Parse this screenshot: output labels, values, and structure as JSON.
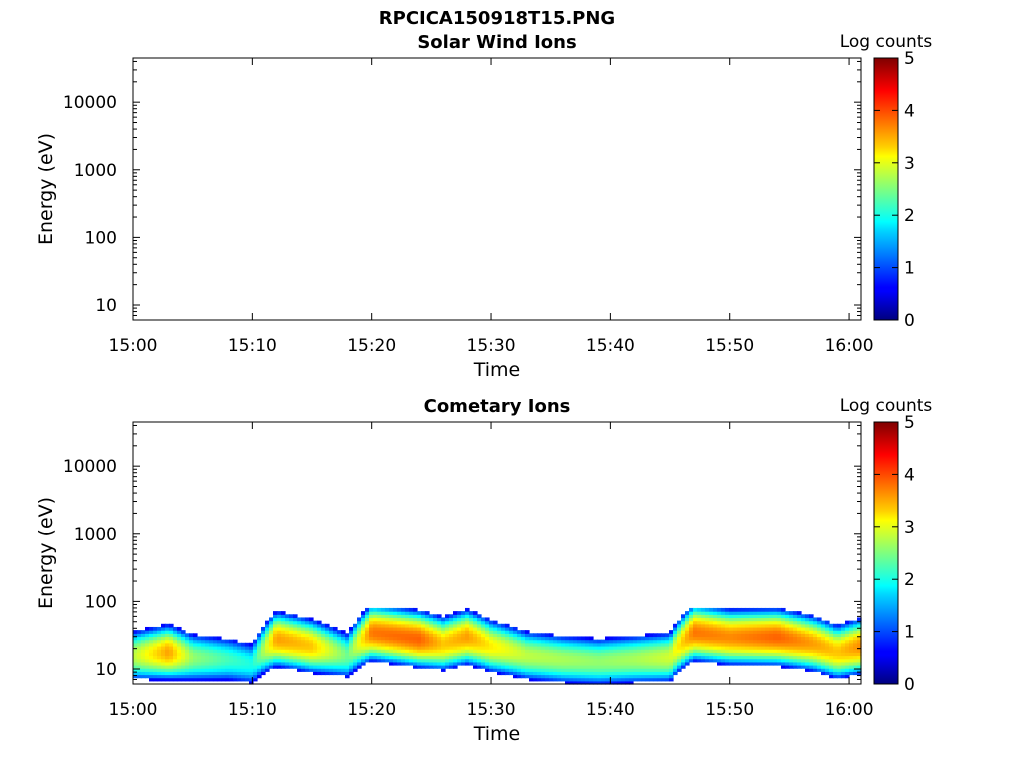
{
  "figure": {
    "title": "RPCICA150918T15.PNG"
  },
  "colors": {
    "colormap": "jet",
    "axis": "#000000",
    "background": "#ffffff"
  },
  "chart_data": [
    {
      "type": "heatmap",
      "title": "Solar Wind Ions",
      "xlabel": "Time",
      "ylabel": "Energy (eV)",
      "x_ticks": [
        "15:00",
        "15:10",
        "15:20",
        "15:30",
        "15:40",
        "15:50",
        "16:00"
      ],
      "x_range": [
        "15:00",
        "16:01"
      ],
      "y_scale": "log",
      "y_ticks": [
        "10",
        "100",
        "1000",
        "10000"
      ],
      "y_range": [
        6,
        45000
      ],
      "colorbar": {
        "label": "Log counts",
        "range": [
          0,
          5
        ],
        "ticks": [
          "0",
          "1",
          "2",
          "3",
          "4",
          "5"
        ]
      },
      "data": "empty"
    },
    {
      "type": "heatmap",
      "title": "Cometary Ions",
      "xlabel": "Time",
      "ylabel": "Energy (eV)",
      "x_ticks": [
        "15:00",
        "15:10",
        "15:20",
        "15:30",
        "15:40",
        "15:50",
        "16:00"
      ],
      "x_range": [
        "15:00",
        "16:01"
      ],
      "y_scale": "log",
      "y_ticks": [
        "10",
        "100",
        "1000",
        "10000"
      ],
      "y_range": [
        6,
        45000
      ],
      "colorbar": {
        "label": "Log counts",
        "range": [
          0,
          5
        ],
        "ticks": [
          "0",
          "1",
          "2",
          "3",
          "4",
          "5"
        ]
      },
      "energy_range_with_counts_eV": [
        6,
        80
      ],
      "peak_energy_profile": {
        "time": [
          "15:00",
          "15:03",
          "15:05",
          "15:08",
          "15:10",
          "15:12",
          "15:15",
          "15:18",
          "15:20",
          "15:24",
          "15:26",
          "15:28",
          "15:30",
          "15:33",
          "15:36",
          "15:39",
          "15:42",
          "15:45",
          "15:47",
          "15:50",
          "15:54",
          "15:57",
          "15:59",
          "16:01"
        ],
        "energy_eV": [
          16,
          18,
          15,
          14,
          12,
          28,
          22,
          16,
          35,
          28,
          24,
          30,
          22,
          16,
          14,
          13,
          14,
          15,
          35,
          30,
          30,
          24,
          18,
          22
        ],
        "log_counts_peak": [
          2.8,
          3.6,
          2.6,
          2.2,
          2.0,
          3.6,
          3.4,
          2.4,
          3.8,
          3.9,
          3.4,
          3.6,
          3.2,
          2.8,
          2.7,
          2.6,
          2.7,
          2.9,
          3.8,
          3.7,
          3.9,
          3.6,
          3.4,
          3.7
        ]
      }
    }
  ]
}
